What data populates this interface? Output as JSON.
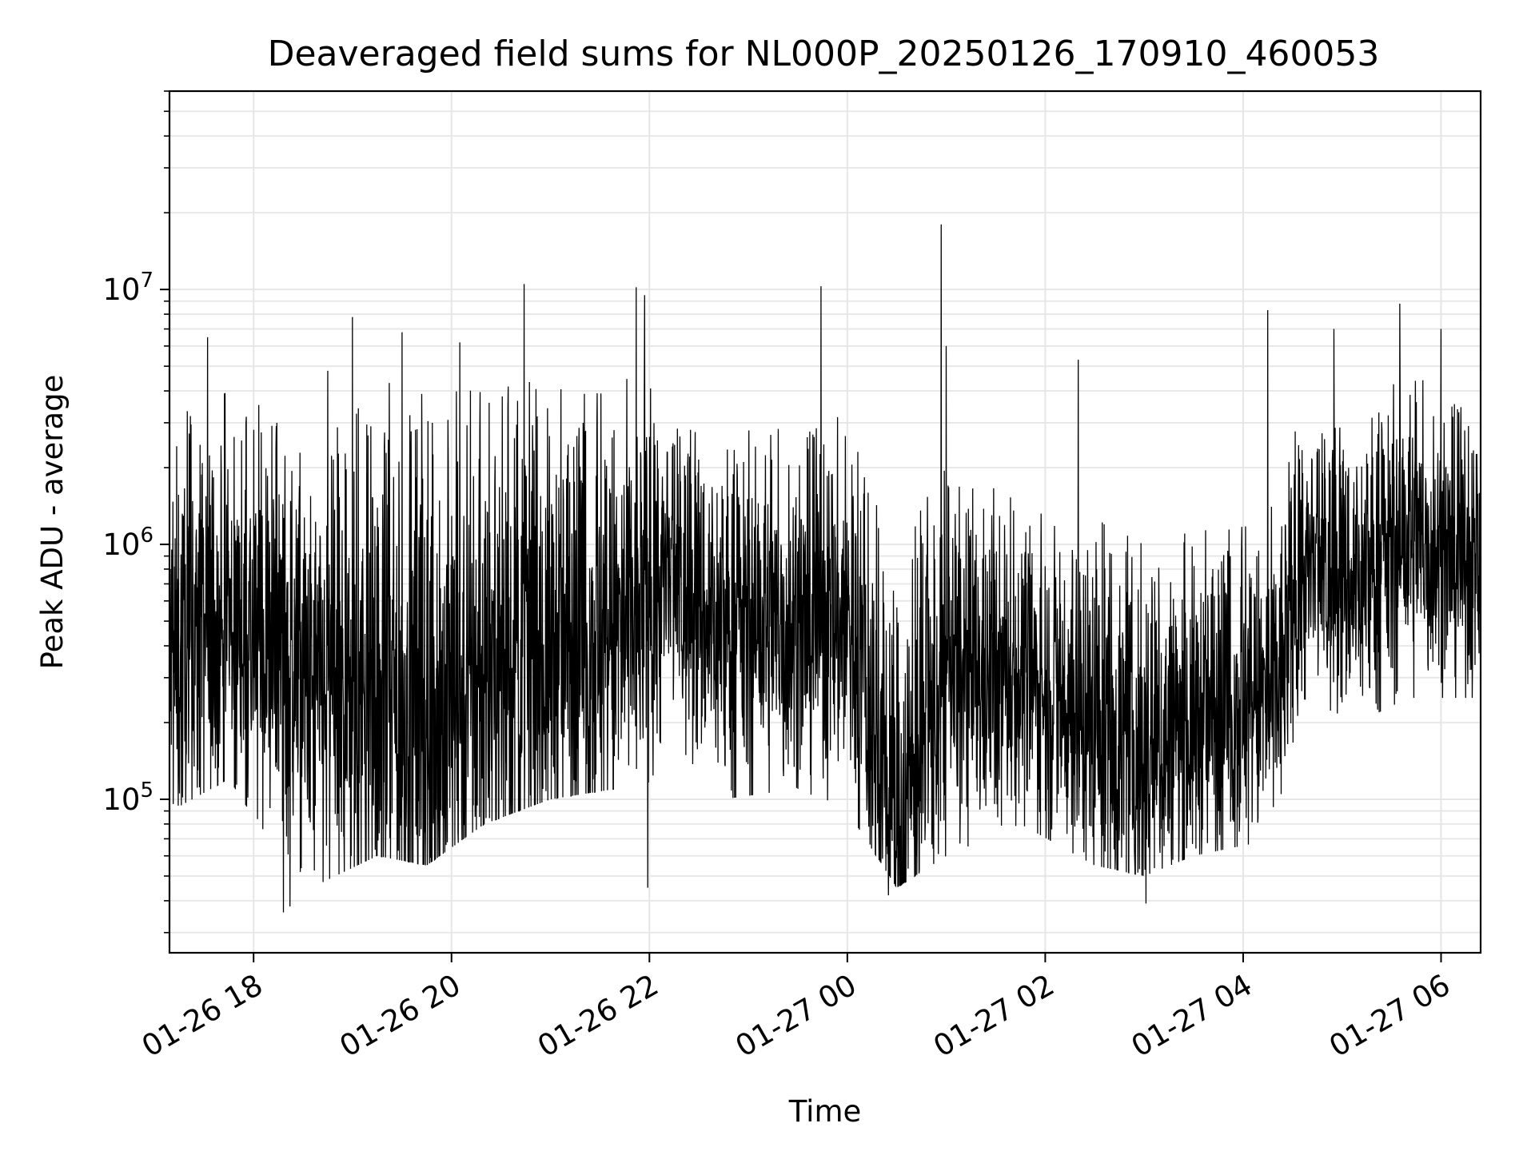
{
  "chart_data": {
    "type": "line",
    "title": "Deaveraged field sums for NL000P_20250126_170910_460053",
    "xlabel": "Time",
    "ylabel": "Peak ADU - average",
    "x_range": [
      "2025-01-26 17:09",
      "2025-01-27 06:24"
    ],
    "ylim": [
      25000,
      60000000
    ],
    "yscale": "log",
    "grid": true,
    "line_color": "#000000",
    "x_ticks": [
      "01-26 18",
      "01-26 20",
      "01-26 22",
      "01-27 00",
      "01-27 02",
      "01-27 04",
      "01-27 06"
    ],
    "y_ticks": [
      {
        "base": "10",
        "exp": "5",
        "value": 100000
      },
      {
        "base": "10",
        "exp": "6",
        "value": 1000000
      },
      {
        "base": "10",
        "exp": "7",
        "value": 10000000
      }
    ],
    "series": [
      {
        "x_start": "2025-01-26 17:09",
        "x_end": "2025-01-27 06:24",
        "envelope": [
          {
            "t": "17:10",
            "low": 90000,
            "mid": 350000,
            "high": 3000000
          },
          {
            "t": "17:45",
            "low": 120000,
            "mid": 450000,
            "high": 4500000
          },
          {
            "t": "18:15",
            "low": 60000,
            "mid": 400000,
            "high": 3000000
          },
          {
            "t": "18:35",
            "low": 45000,
            "mid": 250000,
            "high": 2500000
          },
          {
            "t": "19:15",
            "low": 60000,
            "mid": 220000,
            "high": 5000000
          },
          {
            "t": "19:45",
            "low": 55000,
            "mid": 200000,
            "high": 4500000
          },
          {
            "t": "20:20",
            "low": 80000,
            "mid": 300000,
            "high": 4000000
          },
          {
            "t": "21:00",
            "low": 100000,
            "mid": 380000,
            "high": 4500000
          },
          {
            "t": "21:40",
            "low": 110000,
            "mid": 420000,
            "high": 5000000
          },
          {
            "t": "22:10",
            "low": 120000,
            "mid": 700000,
            "high": 4000000
          },
          {
            "t": "22:45",
            "low": 100000,
            "mid": 450000,
            "high": 3000000
          },
          {
            "t": "23:30",
            "low": 110000,
            "mid": 450000,
            "high": 3000000
          },
          {
            "t": "00:00",
            "low": 90000,
            "mid": 500000,
            "high": 3500000
          },
          {
            "t": "00:30",
            "low": 45000,
            "mid": 80000,
            "high": 1000000
          },
          {
            "t": "01:00",
            "low": 60000,
            "mid": 280000,
            "high": 2000000
          },
          {
            "t": "01:45",
            "low": 80000,
            "mid": 300000,
            "high": 1500000
          },
          {
            "t": "02:30",
            "low": 55000,
            "mid": 200000,
            "high": 1500000
          },
          {
            "t": "03:00",
            "low": 50000,
            "mid": 140000,
            "high": 1000000
          },
          {
            "t": "03:30",
            "low": 60000,
            "mid": 200000,
            "high": 1200000
          },
          {
            "t": "04:20",
            "low": 70000,
            "mid": 250000,
            "high": 1500000
          },
          {
            "t": "04:35",
            "low": 250000,
            "mid": 750000,
            "high": 3500000
          },
          {
            "t": "05:10",
            "low": 200000,
            "mid": 700000,
            "high": 3500000
          },
          {
            "t": "05:40",
            "low": 250000,
            "mid": 1000000,
            "high": 5000000
          },
          {
            "t": "06:20",
            "low": 250000,
            "mid": 800000,
            "high": 3500000
          }
        ],
        "spikes": [
          {
            "t": "17:32",
            "value": 6500000
          },
          {
            "t": "18:45",
            "value": 4800000
          },
          {
            "t": "19:00",
            "value": 7800000
          },
          {
            "t": "19:30",
            "value": 6800000
          },
          {
            "t": "20:05",
            "value": 6200000
          },
          {
            "t": "20:44",
            "value": 10500000
          },
          {
            "t": "21:52",
            "value": 10200000
          },
          {
            "t": "21:57",
            "value": 9500000
          },
          {
            "t": "23:44",
            "value": 10300000
          },
          {
            "t": "00:57",
            "value": 18000000
          },
          {
            "t": "01:00",
            "value": 6000000
          },
          {
            "t": "02:20",
            "value": 5300000
          },
          {
            "t": "04:15",
            "value": 8300000
          },
          {
            "t": "04:55",
            "value": 7000000
          },
          {
            "t": "05:35",
            "value": 8800000
          },
          {
            "t": "06:00",
            "value": 7000000
          }
        ],
        "dips": [
          {
            "t": "18:18",
            "value": 36000
          },
          {
            "t": "18:22",
            "value": 38000
          },
          {
            "t": "21:59",
            "value": 45000
          },
          {
            "t": "00:25",
            "value": 42000
          },
          {
            "t": "03:01",
            "value": 39000
          }
        ]
      }
    ]
  }
}
